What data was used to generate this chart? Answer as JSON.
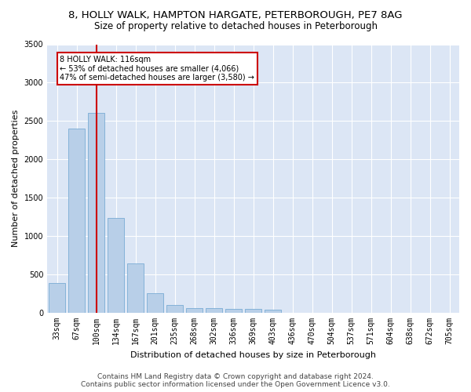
{
  "title1": "8, HOLLY WALK, HAMPTON HARGATE, PETERBOROUGH, PE7 8AG",
  "title2": "Size of property relative to detached houses in Peterborough",
  "xlabel": "Distribution of detached houses by size in Peterborough",
  "ylabel": "Number of detached properties",
  "categories": [
    "33sqm",
    "67sqm",
    "100sqm",
    "134sqm",
    "167sqm",
    "201sqm",
    "235sqm",
    "268sqm",
    "302sqm",
    "336sqm",
    "369sqm",
    "403sqm",
    "436sqm",
    "470sqm",
    "504sqm",
    "537sqm",
    "571sqm",
    "604sqm",
    "638sqm",
    "672sqm",
    "705sqm"
  ],
  "values": [
    390,
    2400,
    2610,
    1240,
    640,
    260,
    100,
    65,
    60,
    55,
    50,
    40,
    0,
    0,
    0,
    0,
    0,
    0,
    0,
    0,
    0
  ],
  "bar_color": "#b8cfe8",
  "bar_edge_color": "#7aacd4",
  "red_line_index": 2,
  "annotation_text": "8 HOLLY WALK: 116sqm\n← 53% of detached houses are smaller (4,066)\n47% of semi-detached houses are larger (3,580) →",
  "annotation_box_color": "#ffffff",
  "annotation_border_color": "#cc0000",
  "red_line_color": "#cc0000",
  "ylim": [
    0,
    3500
  ],
  "yticks": [
    0,
    500,
    1000,
    1500,
    2000,
    2500,
    3000,
    3500
  ],
  "background_color": "#dce6f5",
  "footer1": "Contains HM Land Registry data © Crown copyright and database right 2024.",
  "footer2": "Contains public sector information licensed under the Open Government Licence v3.0.",
  "title1_fontsize": 9.5,
  "title2_fontsize": 8.5,
  "xlabel_fontsize": 8,
  "ylabel_fontsize": 8,
  "tick_fontsize": 7,
  "footer_fontsize": 6.5
}
